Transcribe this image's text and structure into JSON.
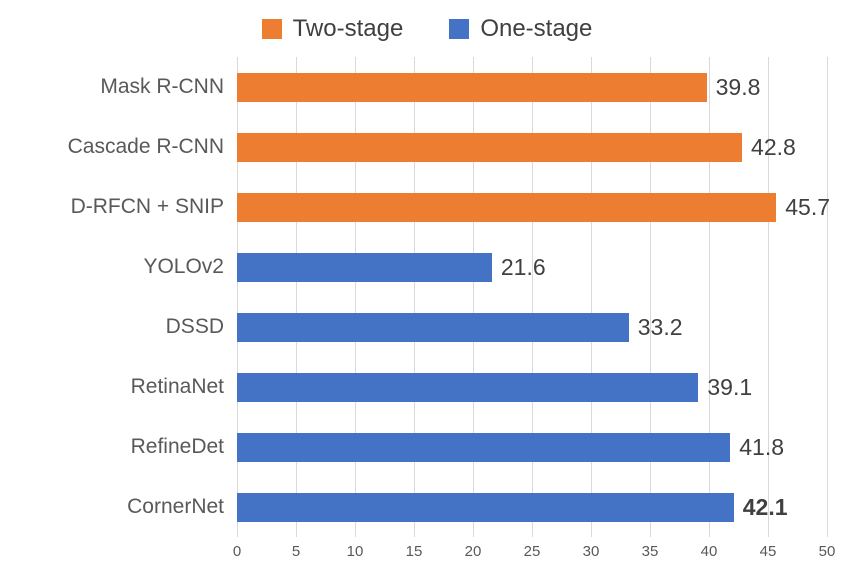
{
  "chart_data": {
    "type": "bar",
    "orientation": "horizontal",
    "title": "",
    "xlabel": "",
    "ylabel": "",
    "xlim": [
      0,
      50
    ],
    "x_ticks": [
      0,
      5,
      10,
      15,
      20,
      25,
      30,
      35,
      40,
      45,
      50
    ],
    "grid": true,
    "legend_position": "top",
    "legend": [
      {
        "label": "Two-stage",
        "color": "#ED7D31"
      },
      {
        "label": "One-stage",
        "color": "#4472C4"
      }
    ],
    "categories": [
      "Mask R-CNN",
      "Cascade R-CNN",
      "D-RFCN + SNIP",
      "YOLOv2",
      "DSSD",
      "RetinaNet",
      "RefineDet",
      "CornerNet"
    ],
    "series": [
      {
        "name": "Two-stage",
        "color": "#ED7D31",
        "values": [
          39.8,
          42.8,
          45.7,
          null,
          null,
          null,
          null,
          null
        ]
      },
      {
        "name": "One-stage",
        "color": "#4472C4",
        "values": [
          null,
          null,
          null,
          21.6,
          33.2,
          39.1,
          41.8,
          42.1
        ]
      }
    ],
    "rows": [
      {
        "label": "Mask R-CNN",
        "value": 39.8,
        "value_label": "39.8",
        "group": "Two-stage",
        "color": "#ED7D31",
        "bold": false
      },
      {
        "label": "Cascade R-CNN",
        "value": 42.8,
        "value_label": "42.8",
        "group": "Two-stage",
        "color": "#ED7D31",
        "bold": false
      },
      {
        "label": "D-RFCN + SNIP",
        "value": 45.7,
        "value_label": "45.7",
        "group": "Two-stage",
        "color": "#ED7D31",
        "bold": false
      },
      {
        "label": "YOLOv2",
        "value": 21.6,
        "value_label": "21.6",
        "group": "One-stage",
        "color": "#4472C4",
        "bold": false
      },
      {
        "label": "DSSD",
        "value": 33.2,
        "value_label": "33.2",
        "group": "One-stage",
        "color": "#4472C4",
        "bold": false
      },
      {
        "label": "RetinaNet",
        "value": 39.1,
        "value_label": "39.1",
        "group": "One-stage",
        "color": "#4472C4",
        "bold": false
      },
      {
        "label": "RefineDet",
        "value": 41.8,
        "value_label": "41.8",
        "group": "One-stage",
        "color": "#4472C4",
        "bold": false
      },
      {
        "label": "CornerNet",
        "value": 42.1,
        "value_label": "42.1",
        "group": "One-stage",
        "color": "#4472C4",
        "bold": true
      }
    ]
  }
}
